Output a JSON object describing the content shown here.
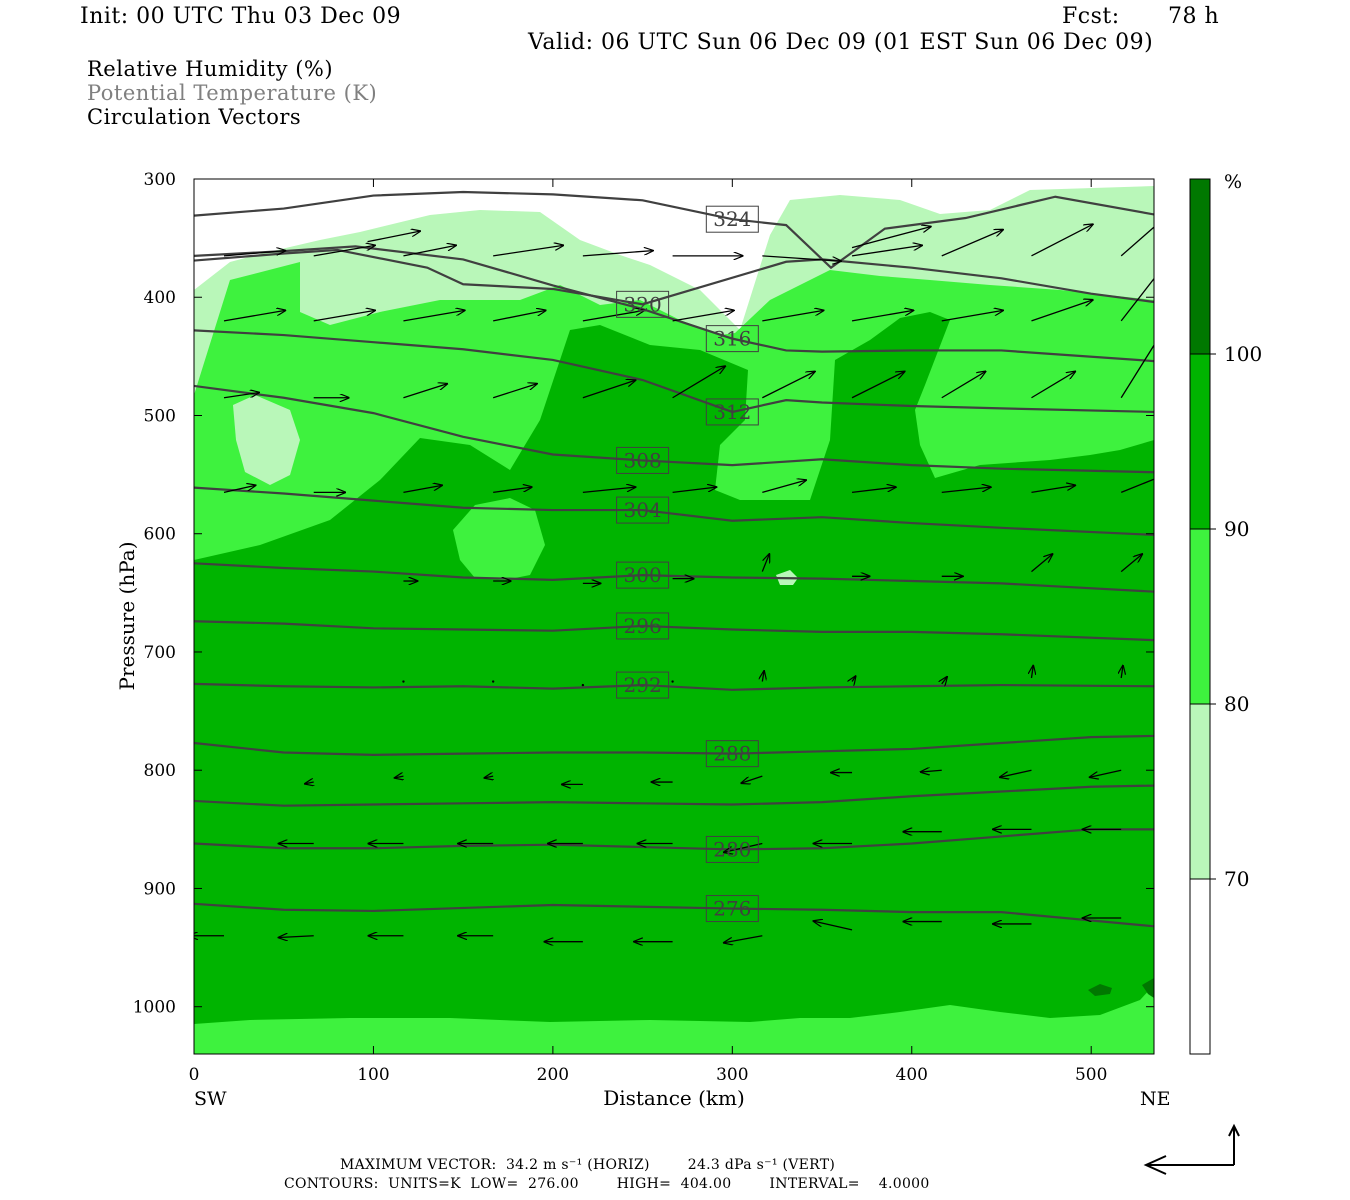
{
  "header": {
    "init": "Init: 00 UTC Thu 03 Dec 09",
    "fcst_label": "Fcst:",
    "fcst_value": "78 h",
    "valid": "Valid: 06 UTC Sun 06 Dec 09 (01 EST Sun 06 Dec 09)"
  },
  "fields": [
    {
      "label": "Relative Humidity (%)",
      "color": "#000000"
    },
    {
      "label": "Potential Temperature (K)",
      "color": "#808080"
    },
    {
      "label": "Circulation Vectors",
      "color": "#000000"
    }
  ],
  "footer": {
    "vector_line": "MAXIMUM VECTOR:  34.2 m s⁻¹ (HORIZ)        24.3 dPa s⁻¹ (VERT)",
    "contour_line": "CONTOURS:  UNITS=K  LOW=  276.00        HIGH=  404.00        INTERVAL=    4.0000"
  },
  "colors": {
    "rh_70_80": "#b9f7b9",
    "rh_80_90": "#3ef23e",
    "rh_90_100": "#00b400",
    "rh_100": "#007800",
    "below_70": "#ffffff",
    "contour": "#404040",
    "vector": "#000000"
  },
  "chart_data": {
    "type": "cross-section",
    "xlabel": "Distance (km)",
    "ylabel": "Pressure (hPa)",
    "x_ticks": [
      0,
      100,
      200,
      300,
      400,
      500
    ],
    "y_ticks": [
      300,
      400,
      500,
      600,
      700,
      800,
      900,
      1000
    ],
    "xlim": [
      0,
      535
    ],
    "ylim": [
      1040,
      300
    ],
    "x_end_labels": {
      "left": "SW",
      "right": "NE"
    },
    "colorbar": {
      "unit": "%",
      "levels": [
        70,
        80,
        90,
        100
      ],
      "labels": [
        "70",
        "80",
        "90",
        "100"
      ]
    },
    "theta_contours": [
      {
        "value": 276,
        "label": "276",
        "points": [
          [
            0,
            913
          ],
          [
            50,
            918
          ],
          [
            100,
            919
          ],
          [
            200,
            914
          ],
          [
            300,
            917
          ],
          [
            350,
            918
          ],
          [
            400,
            920
          ],
          [
            450,
            920
          ],
          [
            535,
            932
          ]
        ]
      },
      {
        "value": 280,
        "label": "280",
        "points": [
          [
            0,
            862
          ],
          [
            50,
            866
          ],
          [
            100,
            866
          ],
          [
            150,
            864
          ],
          [
            200,
            863
          ],
          [
            250,
            865
          ],
          [
            300,
            867
          ],
          [
            350,
            866
          ],
          [
            400,
            862
          ],
          [
            450,
            856
          ],
          [
            500,
            850
          ],
          [
            535,
            850
          ]
        ]
      },
      {
        "value": 284,
        "label": "",
        "points": [
          [
            0,
            826
          ],
          [
            50,
            830
          ],
          [
            100,
            829
          ],
          [
            150,
            828
          ],
          [
            200,
            827
          ],
          [
            250,
            828
          ],
          [
            300,
            829
          ],
          [
            350,
            827
          ],
          [
            400,
            822
          ],
          [
            450,
            818
          ],
          [
            500,
            814
          ],
          [
            535,
            813
          ]
        ]
      },
      {
        "value": 288,
        "label": "288",
        "points": [
          [
            0,
            777
          ],
          [
            50,
            785
          ],
          [
            100,
            787
          ],
          [
            150,
            786
          ],
          [
            200,
            785
          ],
          [
            250,
            785
          ],
          [
            300,
            786
          ],
          [
            350,
            784
          ],
          [
            400,
            782
          ],
          [
            450,
            777
          ],
          [
            500,
            772
          ],
          [
            535,
            771
          ]
        ]
      },
      {
        "value": 292,
        "label": "292",
        "points": [
          [
            0,
            727
          ],
          [
            50,
            729
          ],
          [
            100,
            730
          ],
          [
            150,
            729
          ],
          [
            200,
            731
          ],
          [
            250,
            728
          ],
          [
            300,
            732
          ],
          [
            350,
            730
          ],
          [
            400,
            729
          ],
          [
            450,
            728
          ],
          [
            535,
            729
          ]
        ]
      },
      {
        "value": 296,
        "label": "296",
        "points": [
          [
            0,
            674
          ],
          [
            50,
            676
          ],
          [
            100,
            680
          ],
          [
            150,
            681
          ],
          [
            200,
            682
          ],
          [
            250,
            678
          ],
          [
            300,
            681
          ],
          [
            350,
            683
          ],
          [
            400,
            683
          ],
          [
            450,
            685
          ],
          [
            535,
            690
          ]
        ]
      },
      {
        "value": 300,
        "label": "300",
        "points": [
          [
            0,
            625
          ],
          [
            50,
            629
          ],
          [
            100,
            632
          ],
          [
            150,
            637
          ],
          [
            200,
            639
          ],
          [
            250,
            635
          ],
          [
            300,
            637
          ],
          [
            350,
            638
          ],
          [
            400,
            640
          ],
          [
            450,
            642
          ],
          [
            535,
            649
          ]
        ]
      },
      {
        "value": 304,
        "label": "304",
        "points": [
          [
            0,
            561
          ],
          [
            50,
            566
          ],
          [
            100,
            572
          ],
          [
            150,
            578
          ],
          [
            200,
            580
          ],
          [
            250,
            580
          ],
          [
            300,
            589
          ],
          [
            350,
            586
          ],
          [
            400,
            591
          ],
          [
            450,
            595
          ],
          [
            535,
            601
          ]
        ]
      },
      {
        "value": 308,
        "label": "308",
        "points": [
          [
            0,
            475
          ],
          [
            50,
            485
          ],
          [
            100,
            498
          ],
          [
            150,
            518
          ],
          [
            200,
            533
          ],
          [
            250,
            538
          ],
          [
            300,
            542
          ],
          [
            350,
            537
          ],
          [
            400,
            542
          ],
          [
            450,
            545
          ],
          [
            535,
            548
          ]
        ]
      },
      {
        "value": 312,
        "label": "312",
        "points": [
          [
            0,
            428
          ],
          [
            50,
            432
          ],
          [
            100,
            438
          ],
          [
            150,
            444
          ],
          [
            200,
            453
          ],
          [
            250,
            470
          ],
          [
            300,
            497
          ],
          [
            330,
            487
          ],
          [
            350,
            489
          ],
          [
            400,
            492
          ],
          [
            450,
            494
          ],
          [
            535,
            497
          ]
        ]
      },
      {
        "value": 316,
        "label": "316",
        "points": [
          [
            0,
            365
          ],
          [
            50,
            361
          ],
          [
            90,
            357
          ],
          [
            150,
            368
          ],
          [
            200,
            390
          ],
          [
            250,
            410
          ],
          [
            300,
            435
          ],
          [
            330,
            445
          ],
          [
            350,
            446
          ],
          [
            400,
            445
          ],
          [
            450,
            445
          ],
          [
            535,
            454
          ]
        ]
      },
      {
        "value": 320,
        "label": "320",
        "points": [
          [
            0,
            369
          ],
          [
            50,
            363
          ],
          [
            80,
            360
          ],
          [
            130,
            375
          ],
          [
            150,
            389
          ],
          [
            200,
            393
          ],
          [
            250,
            406
          ],
          [
            330,
            370
          ],
          [
            350,
            368
          ],
          [
            400,
            375
          ],
          [
            450,
            384
          ],
          [
            500,
            397
          ],
          [
            535,
            404
          ]
        ]
      },
      {
        "value": 324,
        "label": "324",
        "points": [
          [
            0,
            331
          ],
          [
            50,
            325
          ],
          [
            100,
            314
          ],
          [
            150,
            311
          ],
          [
            200,
            313
          ],
          [
            250,
            318
          ],
          [
            300,
            334
          ],
          [
            330,
            339
          ],
          [
            355,
            375
          ],
          [
            385,
            342
          ],
          [
            430,
            333
          ],
          [
            480,
            315
          ],
          [
            535,
            330
          ]
        ]
      }
    ],
    "vectors": [
      [
        0,
        940,
        -20,
        0
      ],
      [
        50,
        940,
        -20,
        -1
      ],
      [
        100,
        940,
        -20,
        0
      ],
      [
        150,
        940,
        -20,
        0
      ],
      [
        200,
        945,
        -22,
        0
      ],
      [
        250,
        945,
        -22,
        0
      ],
      [
        300,
        940,
        -22,
        -4
      ],
      [
        350,
        935,
        -22,
        5
      ],
      [
        400,
        928,
        -22,
        0
      ],
      [
        450,
        930,
        -22,
        0
      ],
      [
        500,
        925,
        -22,
        0
      ],
      [
        50,
        862,
        -20,
        0
      ],
      [
        100,
        862,
        -20,
        0
      ],
      [
        150,
        862,
        -20,
        0
      ],
      [
        200,
        862,
        -20,
        0
      ],
      [
        250,
        862,
        -20,
        0
      ],
      [
        300,
        862,
        -22,
        -5
      ],
      [
        350,
        862,
        -22,
        0
      ],
      [
        400,
        852,
        -22,
        0
      ],
      [
        450,
        850,
        -22,
        0
      ],
      [
        500,
        850,
        -22,
        0
      ],
      [
        50,
        810,
        -5,
        -1
      ],
      [
        100,
        805,
        -5,
        -1
      ],
      [
        150,
        805,
        -5,
        -1
      ],
      [
        200,
        812,
        -12,
        0
      ],
      [
        250,
        810,
        -12,
        0
      ],
      [
        300,
        805,
        -12,
        -4
      ],
      [
        350,
        802,
        -12,
        0
      ],
      [
        400,
        800,
        -12,
        -1
      ],
      [
        450,
        800,
        -18,
        -4
      ],
      [
        500,
        800,
        -18,
        -4
      ],
      [
        100,
        725,
        0,
        0
      ],
      [
        150,
        725,
        0,
        0
      ],
      [
        200,
        728,
        0,
        0
      ],
      [
        250,
        725,
        0,
        0
      ],
      [
        300,
        725,
        1,
        6
      ],
      [
        350,
        725,
        2,
        3
      ],
      [
        400,
        727,
        3,
        4
      ],
      [
        450,
        722,
        1,
        7
      ],
      [
        500,
        722,
        1,
        7
      ],
      [
        100,
        640,
        8,
        0
      ],
      [
        150,
        640,
        10,
        0
      ],
      [
        200,
        642,
        10,
        0
      ],
      [
        250,
        638,
        12,
        0
      ],
      [
        300,
        632,
        4,
        10
      ],
      [
        350,
        636,
        10,
        0
      ],
      [
        400,
        636,
        12,
        0
      ],
      [
        450,
        632,
        12,
        10
      ],
      [
        500,
        632,
        12,
        10
      ],
      [
        0,
        565,
        18,
        4
      ],
      [
        50,
        565,
        18,
        0
      ],
      [
        100,
        565,
        22,
        4
      ],
      [
        150,
        565,
        22,
        3
      ],
      [
        200,
        565,
        30,
        3
      ],
      [
        250,
        565,
        25,
        3
      ],
      [
        300,
        565,
        25,
        7
      ],
      [
        350,
        565,
        25,
        3
      ],
      [
        400,
        565,
        28,
        3
      ],
      [
        450,
        565,
        25,
        4
      ],
      [
        500,
        565,
        25,
        10
      ],
      [
        0,
        485,
        20,
        3
      ],
      [
        50,
        485,
        20,
        0
      ],
      [
        100,
        485,
        25,
        8
      ],
      [
        150,
        485,
        25,
        8
      ],
      [
        200,
        485,
        30,
        10
      ],
      [
        250,
        485,
        30,
        18
      ],
      [
        300,
        485,
        30,
        15
      ],
      [
        350,
        485,
        30,
        15
      ],
      [
        400,
        485,
        25,
        15
      ],
      [
        450,
        485,
        25,
        15
      ],
      [
        500,
        485,
        25,
        40
      ],
      [
        0,
        420,
        35,
        6
      ],
      [
        50,
        420,
        35,
        6
      ],
      [
        100,
        420,
        35,
        6
      ],
      [
        150,
        420,
        30,
        6
      ],
      [
        200,
        420,
        35,
        6
      ],
      [
        250,
        420,
        35,
        6
      ],
      [
        300,
        420,
        35,
        6
      ],
      [
        350,
        420,
        35,
        6
      ],
      [
        400,
        420,
        35,
        6
      ],
      [
        450,
        420,
        35,
        12
      ],
      [
        500,
        420,
        35,
        45
      ],
      [
        0,
        365,
        35,
        3
      ],
      [
        50,
        365,
        35,
        6
      ],
      [
        100,
        365,
        30,
        6
      ],
      [
        150,
        365,
        40,
        6
      ],
      [
        200,
        365,
        40,
        3
      ],
      [
        250,
        365,
        40,
        0
      ],
      [
        300,
        365,
        45,
        -3
      ],
      [
        350,
        365,
        40,
        6
      ],
      [
        400,
        365,
        35,
        15
      ],
      [
        450,
        365,
        35,
        18
      ],
      [
        500,
        365,
        40,
        35
      ],
      [
        80,
        353,
        30,
        6
      ],
      [
        350,
        358,
        45,
        12
      ]
    ]
  }
}
